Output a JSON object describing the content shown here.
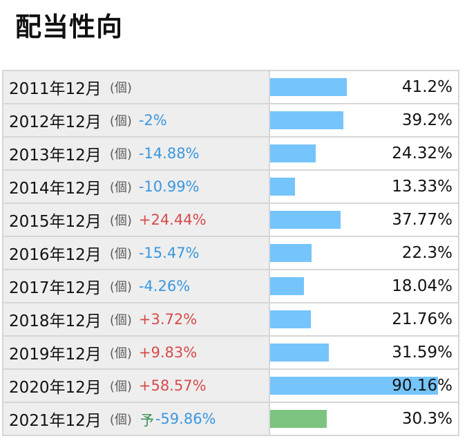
{
  "page": {
    "title": "配当性向"
  },
  "colors": {
    "bar_actual": "#75c4fb",
    "bar_forecast": "#7cc47f",
    "change_up": "#d84a4a",
    "change_down": "#3a97e0",
    "forecast_mark": "#2f8f4a"
  },
  "bar_scale_max": 90.16,
  "rows": [
    {
      "period": "2011年12月",
      "unit": "(個)",
      "change": "",
      "direction": "",
      "forecast_mark": "",
      "value": 41.2,
      "value_text": "41.2%",
      "forecast": false
    },
    {
      "period": "2012年12月",
      "unit": "(個)",
      "change": "-2%",
      "direction": "down",
      "forecast_mark": "",
      "value": 39.2,
      "value_text": "39.2%",
      "forecast": false
    },
    {
      "period": "2013年12月",
      "unit": "(個)",
      "change": "-14.88%",
      "direction": "down",
      "forecast_mark": "",
      "value": 24.32,
      "value_text": "24.32%",
      "forecast": false
    },
    {
      "period": "2014年12月",
      "unit": "(個)",
      "change": "-10.99%",
      "direction": "down",
      "forecast_mark": "",
      "value": 13.33,
      "value_text": "13.33%",
      "forecast": false
    },
    {
      "period": "2015年12月",
      "unit": "(個)",
      "change": "+24.44%",
      "direction": "up",
      "forecast_mark": "",
      "value": 37.77,
      "value_text": "37.77%",
      "forecast": false
    },
    {
      "period": "2016年12月",
      "unit": "(個)",
      "change": "-15.47%",
      "direction": "down",
      "forecast_mark": "",
      "value": 22.3,
      "value_text": "22.3%",
      "forecast": false
    },
    {
      "period": "2017年12月",
      "unit": "(個)",
      "change": "-4.26%",
      "direction": "down",
      "forecast_mark": "",
      "value": 18.04,
      "value_text": "18.04%",
      "forecast": false
    },
    {
      "period": "2018年12月",
      "unit": "(個)",
      "change": "+3.72%",
      "direction": "up",
      "forecast_mark": "",
      "value": 21.76,
      "value_text": "21.76%",
      "forecast": false
    },
    {
      "period": "2019年12月",
      "unit": "(個)",
      "change": "+9.83%",
      "direction": "up",
      "forecast_mark": "",
      "value": 31.59,
      "value_text": "31.59%",
      "forecast": false
    },
    {
      "period": "2020年12月",
      "unit": "(個)",
      "change": "+58.57%",
      "direction": "up",
      "forecast_mark": "",
      "value": 90.16,
      "value_text": "90.16%",
      "forecast": false
    },
    {
      "period": "2021年12月",
      "unit": "(個)",
      "change": "-59.86%",
      "direction": "down",
      "forecast_mark": "予",
      "value": 30.3,
      "value_text": "30.3%",
      "forecast": true
    }
  ]
}
